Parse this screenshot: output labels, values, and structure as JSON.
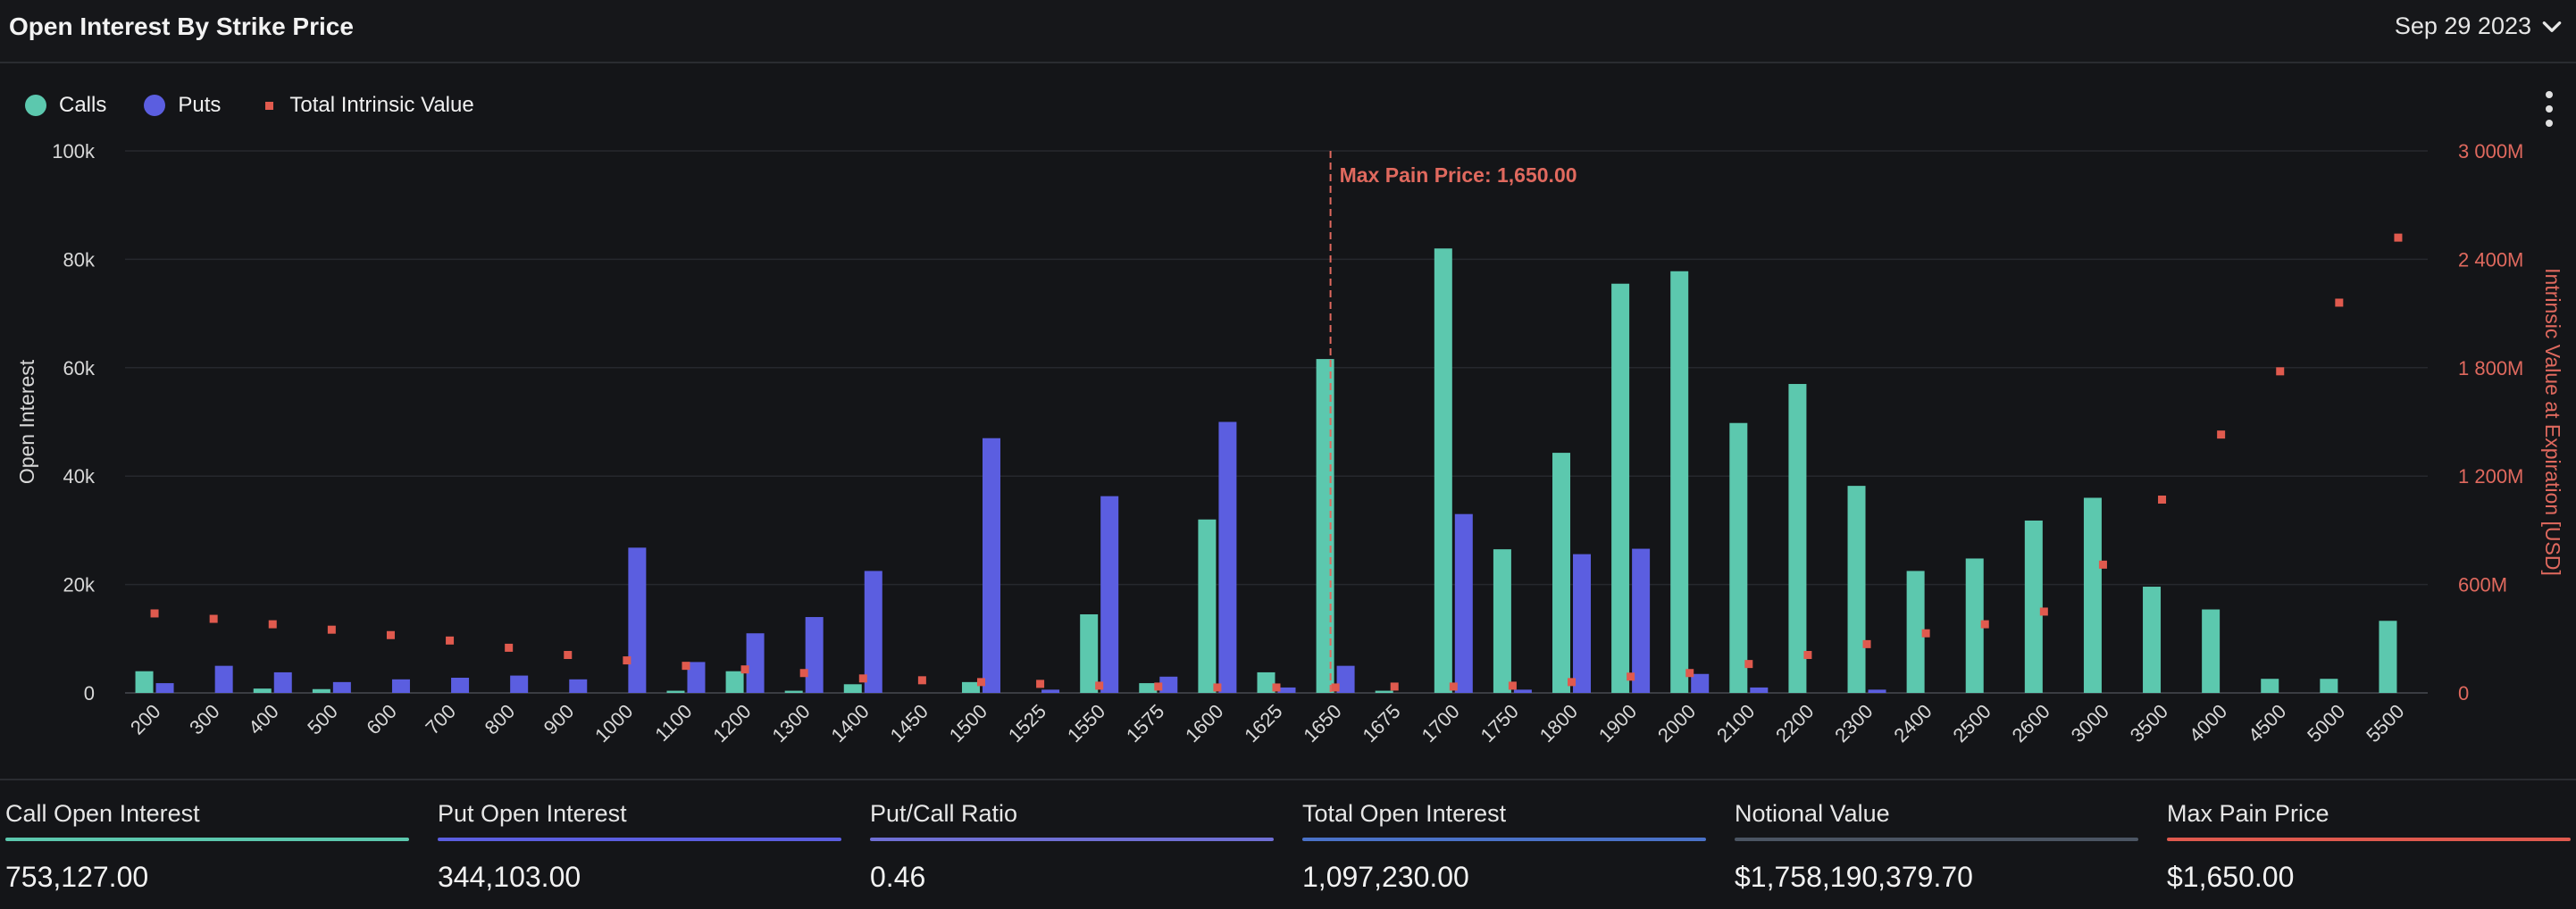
{
  "header": {
    "title": "Open Interest By Strike Price",
    "date": "Sep 29 2023"
  },
  "legend": [
    {
      "label": "Calls",
      "color": "#5cc8ae",
      "shape": "circle"
    },
    {
      "label": "Puts",
      "color": "#5b5ee0",
      "shape": "circle"
    },
    {
      "label": "Total Intrinsic Value",
      "color": "#e05a4e",
      "shape": "square"
    }
  ],
  "chart_data": {
    "type": "bar",
    "title": "",
    "xlabel": "",
    "ylabel": "Open Interest",
    "y2label": "Intrinsic Value at Expiration [USD]",
    "ylim": [
      0,
      100000
    ],
    "y2lim": [
      0,
      3000000000
    ],
    "y_ticks": [
      "0",
      "20k",
      "40k",
      "60k",
      "80k",
      "100k"
    ],
    "y2_ticks": [
      "0",
      "600M",
      "1 200M",
      "1 800M",
      "2 400M",
      "3 000M"
    ],
    "grid": true,
    "legend_position": "top-left",
    "categories": [
      "200",
      "300",
      "400",
      "500",
      "600",
      "700",
      "800",
      "900",
      "1000",
      "1100",
      "1200",
      "1300",
      "1400",
      "1450",
      "1500",
      "1525",
      "1550",
      "1575",
      "1600",
      "1625",
      "1650",
      "1675",
      "1700",
      "1750",
      "1800",
      "1900",
      "2000",
      "2100",
      "2200",
      "2300",
      "2400",
      "2500",
      "2600",
      "3000",
      "3500",
      "4000",
      "4500",
      "5000",
      "5500"
    ],
    "series": [
      {
        "name": "Calls",
        "type": "bar",
        "axis": "left",
        "color": "#5cc8ae",
        "values": [
          4000,
          0,
          800,
          700,
          0,
          0,
          0,
          0,
          0,
          400,
          4000,
          400,
          1600,
          0,
          2000,
          0,
          14500,
          1800,
          32000,
          3800,
          61600,
          400,
          82000,
          26500,
          44300,
          75500,
          77800,
          49800,
          57000,
          38200,
          22500,
          24800,
          31800,
          36000,
          19600,
          15400,
          2600,
          2600,
          13300
        ]
      },
      {
        "name": "Puts",
        "type": "bar",
        "axis": "left",
        "color": "#5b5ee0",
        "values": [
          1800,
          5000,
          3800,
          2000,
          2500,
          2800,
          3200,
          2500,
          26800,
          5700,
          11000,
          14000,
          22500,
          0,
          47000,
          600,
          36300,
          3000,
          50000,
          1000,
          5000,
          0,
          33000,
          600,
          25600,
          26600,
          3500,
          1000,
          0,
          600,
          0,
          0,
          0,
          0,
          0,
          0,
          0,
          0,
          0
        ]
      },
      {
        "name": "Total Intrinsic Value",
        "type": "scatter",
        "axis": "right",
        "color": "#e05a4e",
        "values": [
          440000000,
          410000000,
          380000000,
          350000000,
          320000000,
          290000000,
          250000000,
          210000000,
          180000000,
          150000000,
          130000000,
          110000000,
          80000000,
          70000000,
          60000000,
          50000000,
          40000000,
          35000000,
          30000000,
          30000000,
          30000000,
          35000000,
          35000000,
          40000000,
          60000000,
          90000000,
          110000000,
          160000000,
          210000000,
          270000000,
          330000000,
          380000000,
          450000000,
          710000000,
          1070000000,
          1430000000,
          1780000000,
          2160000000,
          2520000000
        ]
      }
    ],
    "annotation": {
      "label": "Max Pain Price: 1,650.00",
      "category": "1650"
    }
  },
  "stats": [
    {
      "label": "Call Open Interest",
      "value": "753,127.00",
      "color": "#5cc8ae"
    },
    {
      "label": "Put Open Interest",
      "value": "344,103.00",
      "color": "#5b5ee0"
    },
    {
      "label": "Put/Call Ratio",
      "value": "0.46",
      "color": "#6f6fd4"
    },
    {
      "label": "Total Open Interest",
      "value": "1,097,230.00",
      "color": "#4a72c8"
    },
    {
      "label": "Notional Value",
      "value": "$1,758,190,379.70",
      "color": "#4b5563"
    },
    {
      "label": "Max Pain Price",
      "value": "$1,650.00",
      "color": "#e05a4e"
    }
  ]
}
